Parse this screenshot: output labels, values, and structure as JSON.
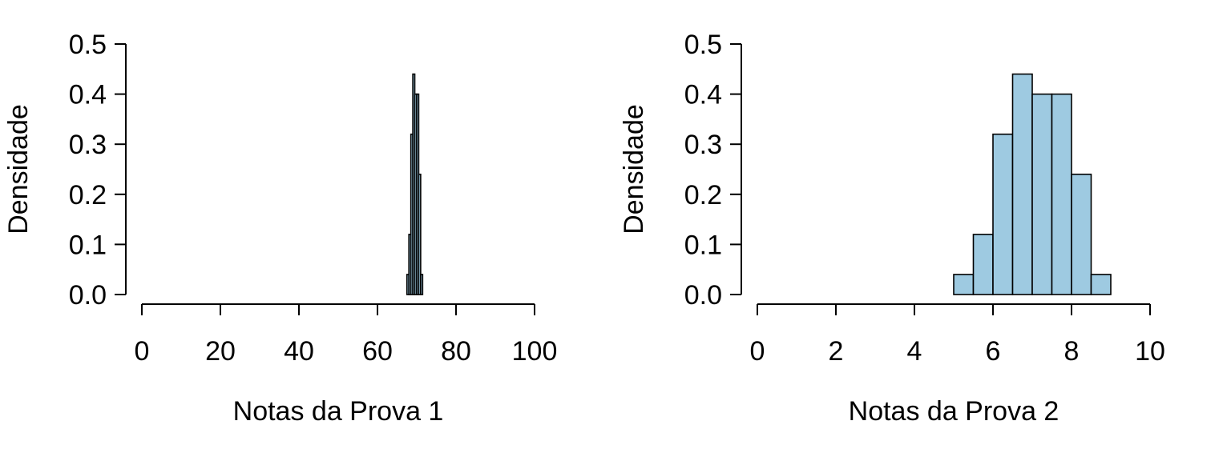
{
  "chart_data": [
    {
      "type": "bar",
      "subtype": "histogram",
      "xlabel": "Notas da Prova 1",
      "ylabel": "Densidade",
      "xlim": [
        0,
        100
      ],
      "ylim": [
        0,
        0.5
      ],
      "xticks": [
        "0",
        "20",
        "40",
        "60",
        "80",
        "100"
      ],
      "yticks": [
        "0.0",
        "0.1",
        "0.2",
        "0.3",
        "0.4",
        "0.5"
      ],
      "bin_edges": [
        67.5,
        68,
        68.5,
        69,
        69.5,
        70,
        70.5,
        71,
        71.5
      ],
      "values": [
        0.04,
        0.12,
        0.32,
        0.44,
        0.4,
        0.4,
        0.24,
        0.04
      ],
      "bar_color": "#9ecae1",
      "grid": false
    },
    {
      "type": "bar",
      "subtype": "histogram",
      "xlabel": "Notas da Prova 2",
      "ylabel": "Densidade",
      "xlim": [
        0,
        10
      ],
      "ylim": [
        0,
        0.5
      ],
      "xticks": [
        "0",
        "2",
        "4",
        "6",
        "8",
        "10"
      ],
      "yticks": [
        "0.0",
        "0.1",
        "0.2",
        "0.3",
        "0.4",
        "0.5"
      ],
      "bin_edges": [
        5,
        5.5,
        6,
        6.5,
        7,
        7.5,
        8,
        8.5,
        9
      ],
      "values": [
        0.04,
        0.12,
        0.32,
        0.44,
        0.4,
        0.4,
        0.24,
        0.04
      ],
      "bar_color": "#9ecae1",
      "grid": false
    }
  ]
}
